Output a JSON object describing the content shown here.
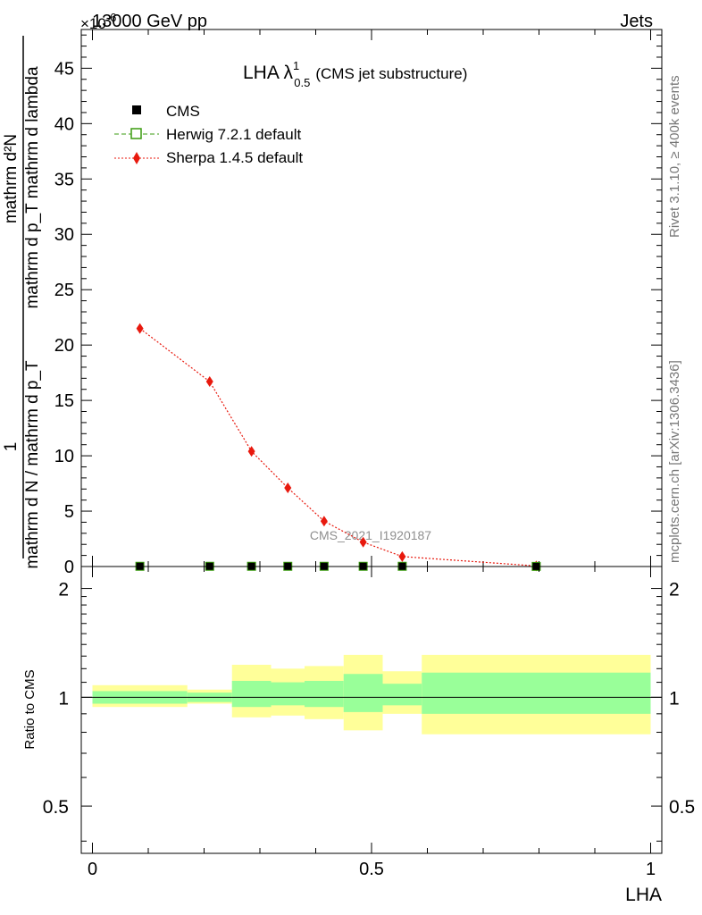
{
  "header": {
    "energy_label": "13000 GeV pp",
    "exponent_label": "×10",
    "exponent_sup": "-6",
    "category": "Jets"
  },
  "side": {
    "rivet": "Rivet 3.1.10, ≥ 400k events",
    "mcplots": "mcplots.cern.ch [arXiv:1306.3436]"
  },
  "watermark": "CMS_2021_I1920187",
  "chart_data": [
    {
      "type": "line",
      "panel": "main",
      "title_main": "LHA λ",
      "title_sup": "1",
      "title_sub": "0.5",
      "title_rest": "(CMS jet substructure)",
      "ylabel_num": "mathrm d²N",
      "ylabel_den": "mathrm d p_T mathrm d lambda",
      "ylabel_prefix_num": "1",
      "ylabel_prefix_den": "mathrm d N / mathrm d p_T",
      "xlabel": "LHA",
      "ylim": [
        0,
        48.5
      ],
      "yticks": [
        0,
        5,
        10,
        15,
        20,
        25,
        30,
        35,
        40,
        45
      ],
      "xlim": [
        -0.02,
        1.02
      ],
      "legend": [
        {
          "name": "CMS",
          "marker": "filled-square",
          "color": "#000000"
        },
        {
          "name": "Herwig 7.2.1 default",
          "marker": "open-square",
          "color": "#3a9b0f",
          "dash": "dashed"
        },
        {
          "name": "Sherpa 1.4.5 default",
          "marker": "diamond",
          "color": "#e8190e",
          "dash": "dotted"
        }
      ],
      "series": [
        {
          "name": "CMS",
          "x": [
            0.085,
            0.21,
            0.285,
            0.35,
            0.415,
            0.485,
            0.555,
            0.795
          ],
          "y": [
            0.02,
            0.02,
            0.02,
            0.02,
            0.02,
            0.02,
            0.02,
            0.01
          ]
        },
        {
          "name": "Herwig 7.2.1 default",
          "x": [
            0.085,
            0.21,
            0.285,
            0.35,
            0.415,
            0.485,
            0.555,
            0.795
          ],
          "y": [
            0.02,
            0.02,
            0.02,
            0.02,
            0.02,
            0.02,
            0.02,
            0.01
          ]
        },
        {
          "name": "Sherpa 1.4.5 default",
          "x": [
            0.085,
            0.21,
            0.285,
            0.35,
            0.415,
            0.485,
            0.555,
            0.795
          ],
          "y": [
            21.5,
            16.7,
            10.4,
            7.1,
            4.1,
            2.2,
            0.9,
            0.05
          ]
        }
      ]
    },
    {
      "type": "area",
      "panel": "ratio",
      "ylabel": "Ratio to CMS",
      "ylim": [
        0.37,
        2.3
      ],
      "yscale": "log",
      "yticks": [
        0.5,
        1,
        2
      ],
      "ytick_labels": [
        "0.5",
        "1",
        "2"
      ],
      "xticks": [
        0,
        0.5,
        1
      ],
      "xtick_labels": [
        "0",
        "0.5",
        "1"
      ],
      "reference_line": 1,
      "bin_edges": [
        0,
        0.17,
        0.25,
        0.32,
        0.38,
        0.45,
        0.52,
        0.59,
        1.0
      ],
      "inner_band": {
        "color": "#99ff99",
        "low": [
          0.96,
          0.97,
          0.94,
          0.95,
          0.94,
          0.91,
          0.95,
          0.9
        ],
        "high": [
          1.04,
          1.03,
          1.11,
          1.1,
          1.11,
          1.16,
          1.09,
          1.17
        ]
      },
      "outer_band": {
        "color": "#ffff99",
        "low": [
          0.94,
          0.96,
          0.88,
          0.89,
          0.87,
          0.81,
          0.9,
          0.79
        ],
        "high": [
          1.08,
          1.05,
          1.23,
          1.2,
          1.22,
          1.31,
          1.18,
          1.31
        ]
      }
    }
  ]
}
